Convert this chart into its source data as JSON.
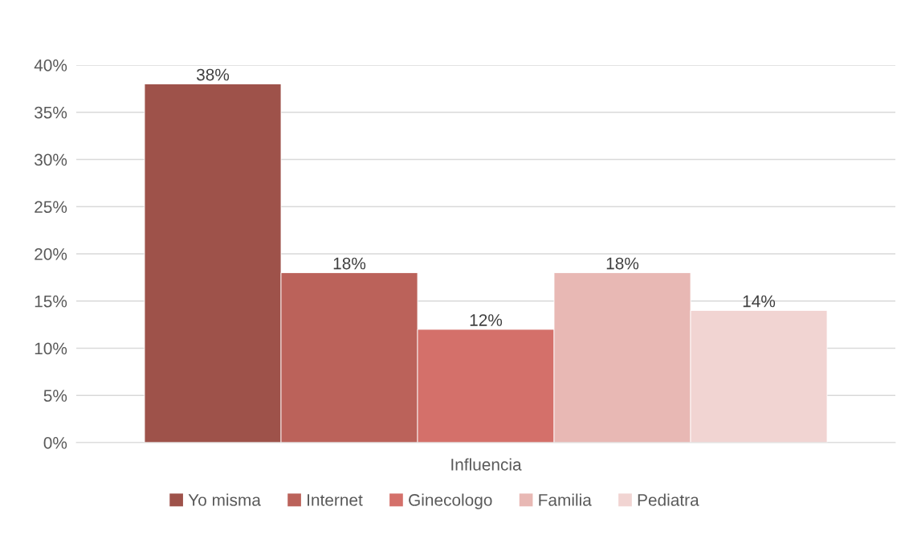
{
  "chart_data": {
    "type": "bar",
    "categories": [
      "Influencia"
    ],
    "series": [
      {
        "name": "Yo misma",
        "color": "#9e524a",
        "values": [
          38
        ],
        "value_labels": [
          "38%"
        ]
      },
      {
        "name": "Internet",
        "color": "#bb625a",
        "values": [
          18
        ],
        "value_labels": [
          "18%"
        ]
      },
      {
        "name": "Ginecologo",
        "color": "#d4706a",
        "values": [
          12
        ],
        "value_labels": [
          "12%"
        ]
      },
      {
        "name": "Familia",
        "color": "#e8b8b4",
        "values": [
          18
        ],
        "value_labels": [
          "18%"
        ]
      },
      {
        "name": "Pediatra",
        "color": "#f1d4d2",
        "values": [
          14
        ],
        "value_labels": [
          "14%"
        ]
      }
    ],
    "ylim": [
      0,
      40
    ],
    "yticks": [
      {
        "value": 0,
        "label": "0%"
      },
      {
        "value": 5,
        "label": "5%"
      },
      {
        "value": 10,
        "label": "10%"
      },
      {
        "value": 15,
        "label": "15%"
      },
      {
        "value": 20,
        "label": "20%"
      },
      {
        "value": 25,
        "label": "25%"
      },
      {
        "value": 30,
        "label": "30%"
      },
      {
        "value": 35,
        "label": "35%"
      },
      {
        "value": 40,
        "label": "40%"
      }
    ],
    "grid": "y",
    "legend": "bottom"
  }
}
